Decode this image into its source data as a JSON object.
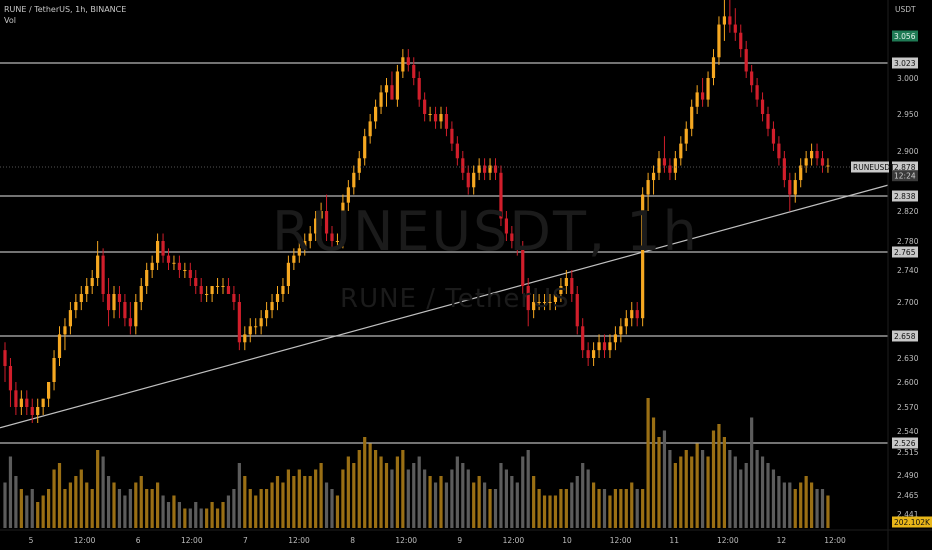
{
  "header": {
    "title": "RUNE / TetherUS, 1h, BINANCE",
    "volume_label": "Vol"
  },
  "watermark": {
    "symbol": "RUNEUSDT, 1h",
    "name": "RUNE / TetherUS"
  },
  "colors": {
    "up": "#f6a821",
    "down": "#d11e2b",
    "vol_up": "#9a6f14",
    "vol_down": "#5c5c5c",
    "level_line": "#b8b8b8",
    "trend_line": "#c0c0c0",
    "background": "#000000"
  },
  "chart_data": {
    "type": "candlestick",
    "symbol": "RUNEUSDT",
    "interval": "1h",
    "currency_label": "USDT",
    "y_ticks": [
      3.0,
      2.95,
      2.9,
      2.82,
      2.78,
      2.74,
      2.7,
      2.63,
      2.6,
      2.57,
      2.54,
      2.515,
      2.49,
      2.465,
      2.441
    ],
    "x_ticks": [
      "5",
      "12:00",
      "6",
      "12:00",
      "7",
      "12:00",
      "8",
      "12:00",
      "9",
      "12:00",
      "10",
      "12:00",
      "11",
      "12:00",
      "12",
      "12:00"
    ],
    "levels": [
      3.023,
      2.838,
      2.765,
      2.658,
      2.526
    ],
    "trendline": {
      "from": {
        "time": "5 00:00",
        "price": 2.544
      },
      "to": {
        "time": "12 23:00",
        "price": 2.853
      }
    },
    "price_tags": [
      {
        "label": "3.056",
        "price": 3.056,
        "style": "green"
      },
      {
        "label": "3.023",
        "price": 3.023,
        "style": "gray"
      },
      {
        "label": "2.878",
        "price": 2.878,
        "style": "gray",
        "caption": "RUNEUSDT"
      },
      {
        "label": "12:24",
        "price": 2.866,
        "style": "dark"
      },
      {
        "label": "2.838",
        "price": 2.838,
        "style": "gray"
      },
      {
        "label": "2.765",
        "price": 2.765,
        "style": "gray"
      },
      {
        "label": "2.658",
        "price": 2.658,
        "style": "gray"
      },
      {
        "label": "2.526",
        "price": 2.526,
        "style": "gray"
      },
      {
        "label": "202.102K",
        "price": 2.439,
        "style": "yellow"
      }
    ],
    "last_price": 2.878,
    "current_volume": "202.102K",
    "candles": [
      [
        2.64,
        2.65,
        2.6,
        2.62
      ],
      [
        2.62,
        2.63,
        2.57,
        2.59
      ],
      [
        2.59,
        2.6,
        2.56,
        2.57
      ],
      [
        2.57,
        2.59,
        2.56,
        2.58
      ],
      [
        2.58,
        2.59,
        2.56,
        2.57
      ],
      [
        2.57,
        2.58,
        2.55,
        2.56
      ],
      [
        2.56,
        2.58,
        2.55,
        2.57
      ],
      [
        2.57,
        2.58,
        2.56,
        2.58
      ],
      [
        2.58,
        2.6,
        2.57,
        2.6
      ],
      [
        2.6,
        2.64,
        2.59,
        2.63
      ],
      [
        2.63,
        2.67,
        2.62,
        2.66
      ],
      [
        2.66,
        2.68,
        2.64,
        2.67
      ],
      [
        2.67,
        2.7,
        2.66,
        2.69
      ],
      [
        2.69,
        2.71,
        2.68,
        2.7
      ],
      [
        2.7,
        2.72,
        2.69,
        2.71
      ],
      [
        2.71,
        2.73,
        2.7,
        2.72
      ],
      [
        2.72,
        2.74,
        2.71,
        2.73
      ],
      [
        2.73,
        2.78,
        2.72,
        2.76
      ],
      [
        2.76,
        2.77,
        2.7,
        2.71
      ],
      [
        2.71,
        2.73,
        2.67,
        2.69
      ],
      [
        2.69,
        2.72,
        2.68,
        2.71
      ],
      [
        2.71,
        2.72,
        2.68,
        2.7
      ],
      [
        2.7,
        2.71,
        2.67,
        2.68
      ],
      [
        2.68,
        2.7,
        2.66,
        2.67
      ],
      [
        2.67,
        2.71,
        2.66,
        2.7
      ],
      [
        2.7,
        2.73,
        2.69,
        2.72
      ],
      [
        2.72,
        2.75,
        2.71,
        2.74
      ],
      [
        2.74,
        2.76,
        2.73,
        2.75
      ],
      [
        2.75,
        2.79,
        2.74,
        2.78
      ],
      [
        2.78,
        2.79,
        2.75,
        2.76
      ],
      [
        2.76,
        2.77,
        2.74,
        2.75
      ],
      [
        2.75,
        2.76,
        2.74,
        2.75
      ],
      [
        2.75,
        2.76,
        2.73,
        2.74
      ],
      [
        2.74,
        2.75,
        2.73,
        2.74
      ],
      [
        2.74,
        2.75,
        2.72,
        2.73
      ],
      [
        2.73,
        2.74,
        2.71,
        2.72
      ],
      [
        2.72,
        2.73,
        2.7,
        2.71
      ],
      [
        2.71,
        2.72,
        2.7,
        2.71
      ],
      [
        2.71,
        2.72,
        2.7,
        2.72
      ],
      [
        2.72,
        2.73,
        2.71,
        2.72
      ],
      [
        2.72,
        2.73,
        2.71,
        2.72
      ],
      [
        2.72,
        2.73,
        2.71,
        2.71
      ],
      [
        2.71,
        2.72,
        2.69,
        2.7
      ],
      [
        2.7,
        2.71,
        2.64,
        2.65
      ],
      [
        2.65,
        2.67,
        2.64,
        2.66
      ],
      [
        2.66,
        2.68,
        2.65,
        2.67
      ],
      [
        2.67,
        2.68,
        2.66,
        2.67
      ],
      [
        2.67,
        2.69,
        2.66,
        2.68
      ],
      [
        2.68,
        2.7,
        2.67,
        2.69
      ],
      [
        2.69,
        2.71,
        2.68,
        2.7
      ],
      [
        2.7,
        2.72,
        2.69,
        2.71
      ],
      [
        2.71,
        2.73,
        2.7,
        2.72
      ],
      [
        2.72,
        2.76,
        2.71,
        2.75
      ],
      [
        2.75,
        2.77,
        2.74,
        2.76
      ],
      [
        2.76,
        2.78,
        2.75,
        2.77
      ],
      [
        2.77,
        2.79,
        2.76,
        2.78
      ],
      [
        2.78,
        2.8,
        2.77,
        2.79
      ],
      [
        2.79,
        2.82,
        2.78,
        2.81
      ],
      [
        2.81,
        2.83,
        2.8,
        2.82
      ],
      [
        2.82,
        2.84,
        2.78,
        2.79
      ],
      [
        2.79,
        2.8,
        2.77,
        2.78
      ],
      [
        2.78,
        2.79,
        2.77,
        2.78
      ],
      [
        2.78,
        2.84,
        2.77,
        2.83
      ],
      [
        2.83,
        2.86,
        2.82,
        2.85
      ],
      [
        2.85,
        2.88,
        2.84,
        2.87
      ],
      [
        2.87,
        2.9,
        2.86,
        2.89
      ],
      [
        2.89,
        2.93,
        2.88,
        2.92
      ],
      [
        2.92,
        2.95,
        2.91,
        2.94
      ],
      [
        2.94,
        2.97,
        2.93,
        2.96
      ],
      [
        2.96,
        2.99,
        2.95,
        2.98
      ],
      [
        2.98,
        3.0,
        2.96,
        2.99
      ],
      [
        2.99,
        3.01,
        2.97,
        2.97
      ],
      [
        2.97,
        3.02,
        2.96,
        3.01
      ],
      [
        3.01,
        3.04,
        3.0,
        3.03
      ],
      [
        3.03,
        3.04,
        3.01,
        3.02
      ],
      [
        3.02,
        3.03,
        2.99,
        3.0
      ],
      [
        3.0,
        3.01,
        2.96,
        2.97
      ],
      [
        2.97,
        2.98,
        2.94,
        2.95
      ],
      [
        2.95,
        2.96,
        2.94,
        2.95
      ],
      [
        2.95,
        2.96,
        2.93,
        2.94
      ],
      [
        2.94,
        2.96,
        2.93,
        2.95
      ],
      [
        2.95,
        2.96,
        2.92,
        2.93
      ],
      [
        2.93,
        2.94,
        2.9,
        2.91
      ],
      [
        2.91,
        2.92,
        2.88,
        2.89
      ],
      [
        2.89,
        2.9,
        2.86,
        2.87
      ],
      [
        2.87,
        2.88,
        2.84,
        2.85
      ],
      [
        2.85,
        2.88,
        2.84,
        2.87
      ],
      [
        2.87,
        2.89,
        2.86,
        2.88
      ],
      [
        2.88,
        2.89,
        2.86,
        2.87
      ],
      [
        2.87,
        2.89,
        2.86,
        2.88
      ],
      [
        2.88,
        2.89,
        2.86,
        2.87
      ],
      [
        2.87,
        2.88,
        2.8,
        2.81
      ],
      [
        2.81,
        2.82,
        2.78,
        2.79
      ],
      [
        2.79,
        2.8,
        2.77,
        2.78
      ],
      [
        2.78,
        2.79,
        2.76,
        2.77
      ],
      [
        2.77,
        2.78,
        2.71,
        2.72
      ],
      [
        2.72,
        2.73,
        2.67,
        2.69
      ],
      [
        2.69,
        2.71,
        2.68,
        2.7
      ],
      [
        2.7,
        2.71,
        2.69,
        2.7
      ],
      [
        2.7,
        2.71,
        2.69,
        2.7
      ],
      [
        2.7,
        2.71,
        2.69,
        2.7
      ],
      [
        2.7,
        2.71,
        2.69,
        2.71
      ],
      [
        2.71,
        2.73,
        2.7,
        2.72
      ],
      [
        2.72,
        2.74,
        2.71,
        2.73
      ],
      [
        2.73,
        2.74,
        2.7,
        2.71
      ],
      [
        2.71,
        2.72,
        2.66,
        2.67
      ],
      [
        2.67,
        2.68,
        2.63,
        2.64
      ],
      [
        2.64,
        2.65,
        2.62,
        2.63
      ],
      [
        2.63,
        2.65,
        2.62,
        2.64
      ],
      [
        2.64,
        2.66,
        2.63,
        2.65
      ],
      [
        2.65,
        2.66,
        2.63,
        2.64
      ],
      [
        2.64,
        2.66,
        2.63,
        2.65
      ],
      [
        2.65,
        2.67,
        2.64,
        2.66
      ],
      [
        2.66,
        2.68,
        2.65,
        2.67
      ],
      [
        2.67,
        2.69,
        2.66,
        2.68
      ],
      [
        2.68,
        2.7,
        2.67,
        2.69
      ],
      [
        2.69,
        2.7,
        2.67,
        2.68
      ],
      [
        2.68,
        2.85,
        2.67,
        2.84
      ],
      [
        2.84,
        2.87,
        2.82,
        2.86
      ],
      [
        2.86,
        2.88,
        2.84,
        2.87
      ],
      [
        2.87,
        2.9,
        2.86,
        2.89
      ],
      [
        2.89,
        2.92,
        2.87,
        2.88
      ],
      [
        2.88,
        2.89,
        2.86,
        2.87
      ],
      [
        2.87,
        2.9,
        2.86,
        2.89
      ],
      [
        2.89,
        2.92,
        2.88,
        2.91
      ],
      [
        2.91,
        2.94,
        2.9,
        2.93
      ],
      [
        2.93,
        2.97,
        2.92,
        2.96
      ],
      [
        2.96,
        2.99,
        2.95,
        2.98
      ],
      [
        2.98,
        3.0,
        2.96,
        2.97
      ],
      [
        2.97,
        3.01,
        2.96,
        3.0
      ],
      [
        3.0,
        3.04,
        2.99,
        3.03
      ],
      [
        3.03,
        3.08,
        3.02,
        3.07
      ],
      [
        3.07,
        3.1,
        3.05,
        3.08
      ],
      [
        3.08,
        3.1,
        3.06,
        3.07
      ],
      [
        3.07,
        3.09,
        3.05,
        3.06
      ],
      [
        3.06,
        3.07,
        3.03,
        3.04
      ],
      [
        3.04,
        3.05,
        3.0,
        3.01
      ],
      [
        3.01,
        3.02,
        2.98,
        2.99
      ],
      [
        2.99,
        3.0,
        2.96,
        2.97
      ],
      [
        2.97,
        2.98,
        2.94,
        2.95
      ],
      [
        2.95,
        2.96,
        2.92,
        2.93
      ],
      [
        2.93,
        2.94,
        2.9,
        2.91
      ],
      [
        2.91,
        2.92,
        2.88,
        2.89
      ],
      [
        2.89,
        2.9,
        2.85,
        2.86
      ],
      [
        2.86,
        2.87,
        2.82,
        2.84
      ],
      [
        2.84,
        2.87,
        2.83,
        2.86
      ],
      [
        2.86,
        2.89,
        2.85,
        2.88
      ],
      [
        2.88,
        2.9,
        2.87,
        2.89
      ],
      [
        2.89,
        2.91,
        2.88,
        2.9
      ],
      [
        2.9,
        2.91,
        2.88,
        2.89
      ],
      [
        2.89,
        2.9,
        2.87,
        2.88
      ],
      [
        2.88,
        2.89,
        2.87,
        2.88
      ]
    ],
    "volumes": [
      0.35,
      0.55,
      0.4,
      0.3,
      0.25,
      0.3,
      0.2,
      0.25,
      0.3,
      0.45,
      0.5,
      0.3,
      0.35,
      0.4,
      0.45,
      0.35,
      0.3,
      0.6,
      0.55,
      0.4,
      0.35,
      0.3,
      0.25,
      0.3,
      0.35,
      0.4,
      0.3,
      0.3,
      0.35,
      0.25,
      0.2,
      0.25,
      0.2,
      0.15,
      0.15,
      0.2,
      0.15,
      0.15,
      0.2,
      0.15,
      0.2,
      0.25,
      0.3,
      0.5,
      0.4,
      0.3,
      0.25,
      0.3,
      0.3,
      0.35,
      0.4,
      0.35,
      0.45,
      0.4,
      0.45,
      0.4,
      0.4,
      0.45,
      0.5,
      0.35,
      0.3,
      0.25,
      0.45,
      0.55,
      0.5,
      0.6,
      0.7,
      0.65,
      0.6,
      0.55,
      0.5,
      0.45,
      0.55,
      0.6,
      0.45,
      0.5,
      0.55,
      0.45,
      0.4,
      0.35,
      0.4,
      0.35,
      0.45,
      0.55,
      0.5,
      0.45,
      0.35,
      0.4,
      0.35,
      0.3,
      0.3,
      0.5,
      0.45,
      0.4,
      0.35,
      0.55,
      0.6,
      0.4,
      0.3,
      0.25,
      0.25,
      0.25,
      0.3,
      0.3,
      0.35,
      0.4,
      0.5,
      0.45,
      0.35,
      0.3,
      0.3,
      0.25,
      0.3,
      0.3,
      0.3,
      0.35,
      0.3,
      0.3,
      1.0,
      0.85,
      0.7,
      0.75,
      0.6,
      0.5,
      0.55,
      0.6,
      0.55,
      0.65,
      0.6,
      0.55,
      0.75,
      0.8,
      0.7,
      0.6,
      0.55,
      0.45,
      0.5,
      0.85,
      0.6,
      0.55,
      0.5,
      0.45,
      0.4,
      0.35,
      0.35,
      0.3,
      0.35,
      0.4,
      0.35,
      0.3,
      0.3,
      0.25,
      0.2
    ]
  }
}
